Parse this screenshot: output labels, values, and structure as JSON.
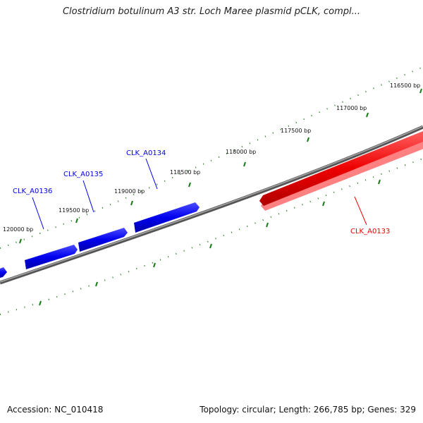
{
  "title": "Clostridium botulinum A3 str. Loch Maree plasmid pCLK, compl...",
  "footer": {
    "accession": "Accession: NC_010418",
    "stats": "Topology: circular; Length: 266,785 bp; Genes: 329"
  },
  "colors": {
    "forward_gene": "#0000ee",
    "reverse_gene": "#ee0000",
    "backbone": "#808080",
    "ticks": "#1a7a1a"
  },
  "tick_labels": [
    "116500 bp",
    "117000 bp",
    "117500 bp",
    "118000 bp",
    "118500 bp",
    "119000 bp",
    "119500 bp",
    "120000 bp"
  ],
  "genes": [
    {
      "label": "CLK_A0133",
      "strand": "reverse",
      "color": "#ee0000"
    },
    {
      "label": "CLK_A0134",
      "strand": "forward",
      "color": "#0000ee"
    },
    {
      "label": "CLK_A0135",
      "strand": "forward",
      "color": "#0000ee"
    },
    {
      "label": "CLK_A0136",
      "strand": "forward",
      "color": "#0000ee"
    }
  ]
}
